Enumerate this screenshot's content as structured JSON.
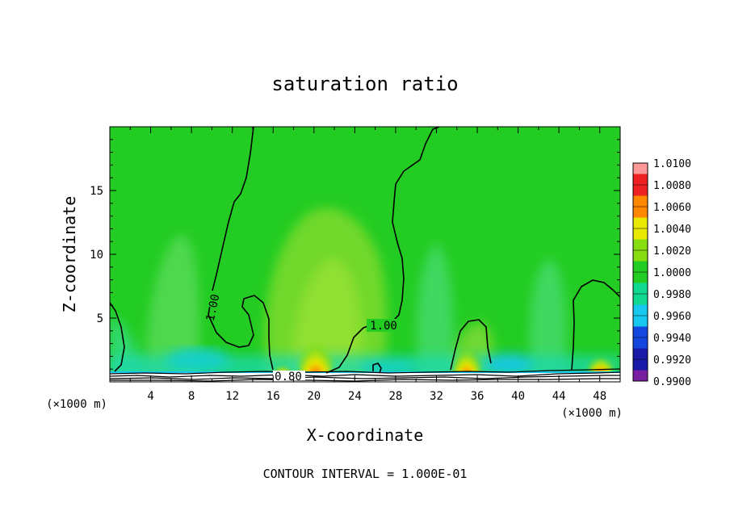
{
  "chart_data": {
    "type": "heatmap",
    "title": "saturation ratio",
    "xlabel": "X-coordinate",
    "ylabel": "Z-coordinate",
    "x_unit": "(×1000 m)",
    "xlim": [
      0,
      50
    ],
    "ylim": [
      0,
      20
    ],
    "x_ticks": [
      "4",
      "8",
      "12",
      "16",
      "20",
      "24",
      "28",
      "32",
      "36",
      "40",
      "44",
      "48"
    ],
    "y_ticks": [
      "5",
      "10",
      "15"
    ],
    "colorbar": {
      "ticks": [
        "0.9900",
        "0.9920",
        "0.9940",
        "0.9960",
        "0.9980",
        "1.0000",
        "1.0020",
        "1.0040",
        "1.0060",
        "1.0080",
        "1.0100"
      ],
      "colors": [
        "#7b1fa2",
        "#1a1aa8",
        "#1446e0",
        "#18c8ee",
        "#10d890",
        "#22cc22",
        "#88dd11",
        "#e8e800",
        "#ff8800",
        "#ee2222",
        "#ff9999"
      ]
    },
    "contour_labels": [
      "1.00",
      "1.00",
      "0.80"
    ],
    "footer": "CONTOUR INTERVAL =  1.000E-01",
    "colors": {
      "background": "#22cc22",
      "light_green": "#80dd33",
      "cyan": "#18d8b0",
      "orange": "#ff8800",
      "red": "#ff2200"
    }
  }
}
